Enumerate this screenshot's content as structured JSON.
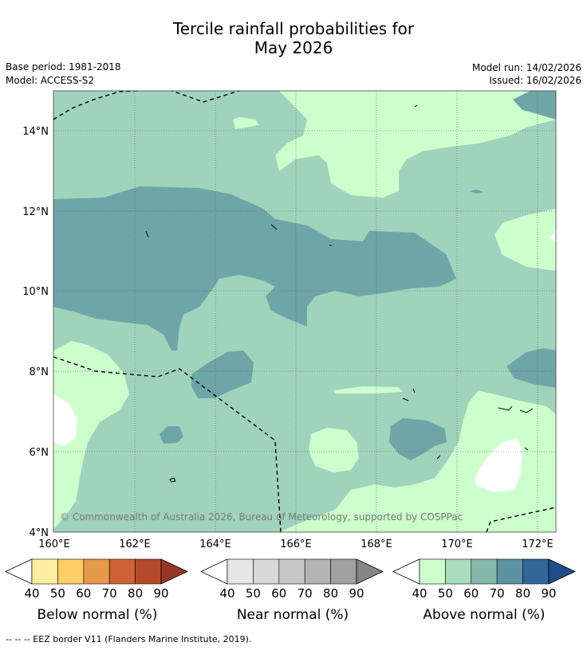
{
  "header": {
    "title_line1": "Tercile rainfall probabilities for",
    "title_line2": "May 2026",
    "base_period": "Base period: 1981-2018",
    "model": "Model: ACCESS-S2",
    "model_run": "Model run: 14/02/2026",
    "issued": "Issued: 16/02/2026"
  },
  "map": {
    "lat_labels": [
      "14°N",
      "12°N",
      "10°N",
      "8°N",
      "6°N",
      "4°N"
    ],
    "lon_labels": [
      "160°E",
      "162°E",
      "164°E",
      "166°E",
      "168°E",
      "170°E",
      "172°E"
    ],
    "copyright": "© Commonwealth of Australia 2026, Bureau of Meteorology, supported by COSPPac",
    "colors": {
      "above_40": "#ccffcc",
      "above_50": "#9fd3bb",
      "above_70": "#6ea5a7",
      "no_signal": "#ffffff",
      "border": "#000000"
    }
  },
  "colorbars": [
    {
      "name": "Below normal (%)",
      "ticks": [
        "40",
        "50",
        "60",
        "70",
        "80",
        "90"
      ],
      "colors": [
        "#ffeea1",
        "#fecd65",
        "#e59a4a",
        "#cd6334",
        "#b54a2a",
        "#983625"
      ]
    },
    {
      "name": "Near normal (%)",
      "ticks": [
        "40",
        "50",
        "60",
        "70",
        "80",
        "90"
      ],
      "colors": [
        "#e6e6e6",
        "#d8d8d8",
        "#c8c8c8",
        "#b4b4b4",
        "#a0a0a0",
        "#858585"
      ]
    },
    {
      "name": "Above normal (%)",
      "ticks": [
        "40",
        "50",
        "60",
        "70",
        "80",
        "90"
      ],
      "colors": [
        "#ccffcc",
        "#a9dbbd",
        "#84b8a8",
        "#5e92a3",
        "#336699",
        "#1e4e88"
      ]
    }
  ],
  "footer": {
    "legend_text": "--  --  -- EEZ border V11 (Flanders Marine Institute, 2019)."
  }
}
